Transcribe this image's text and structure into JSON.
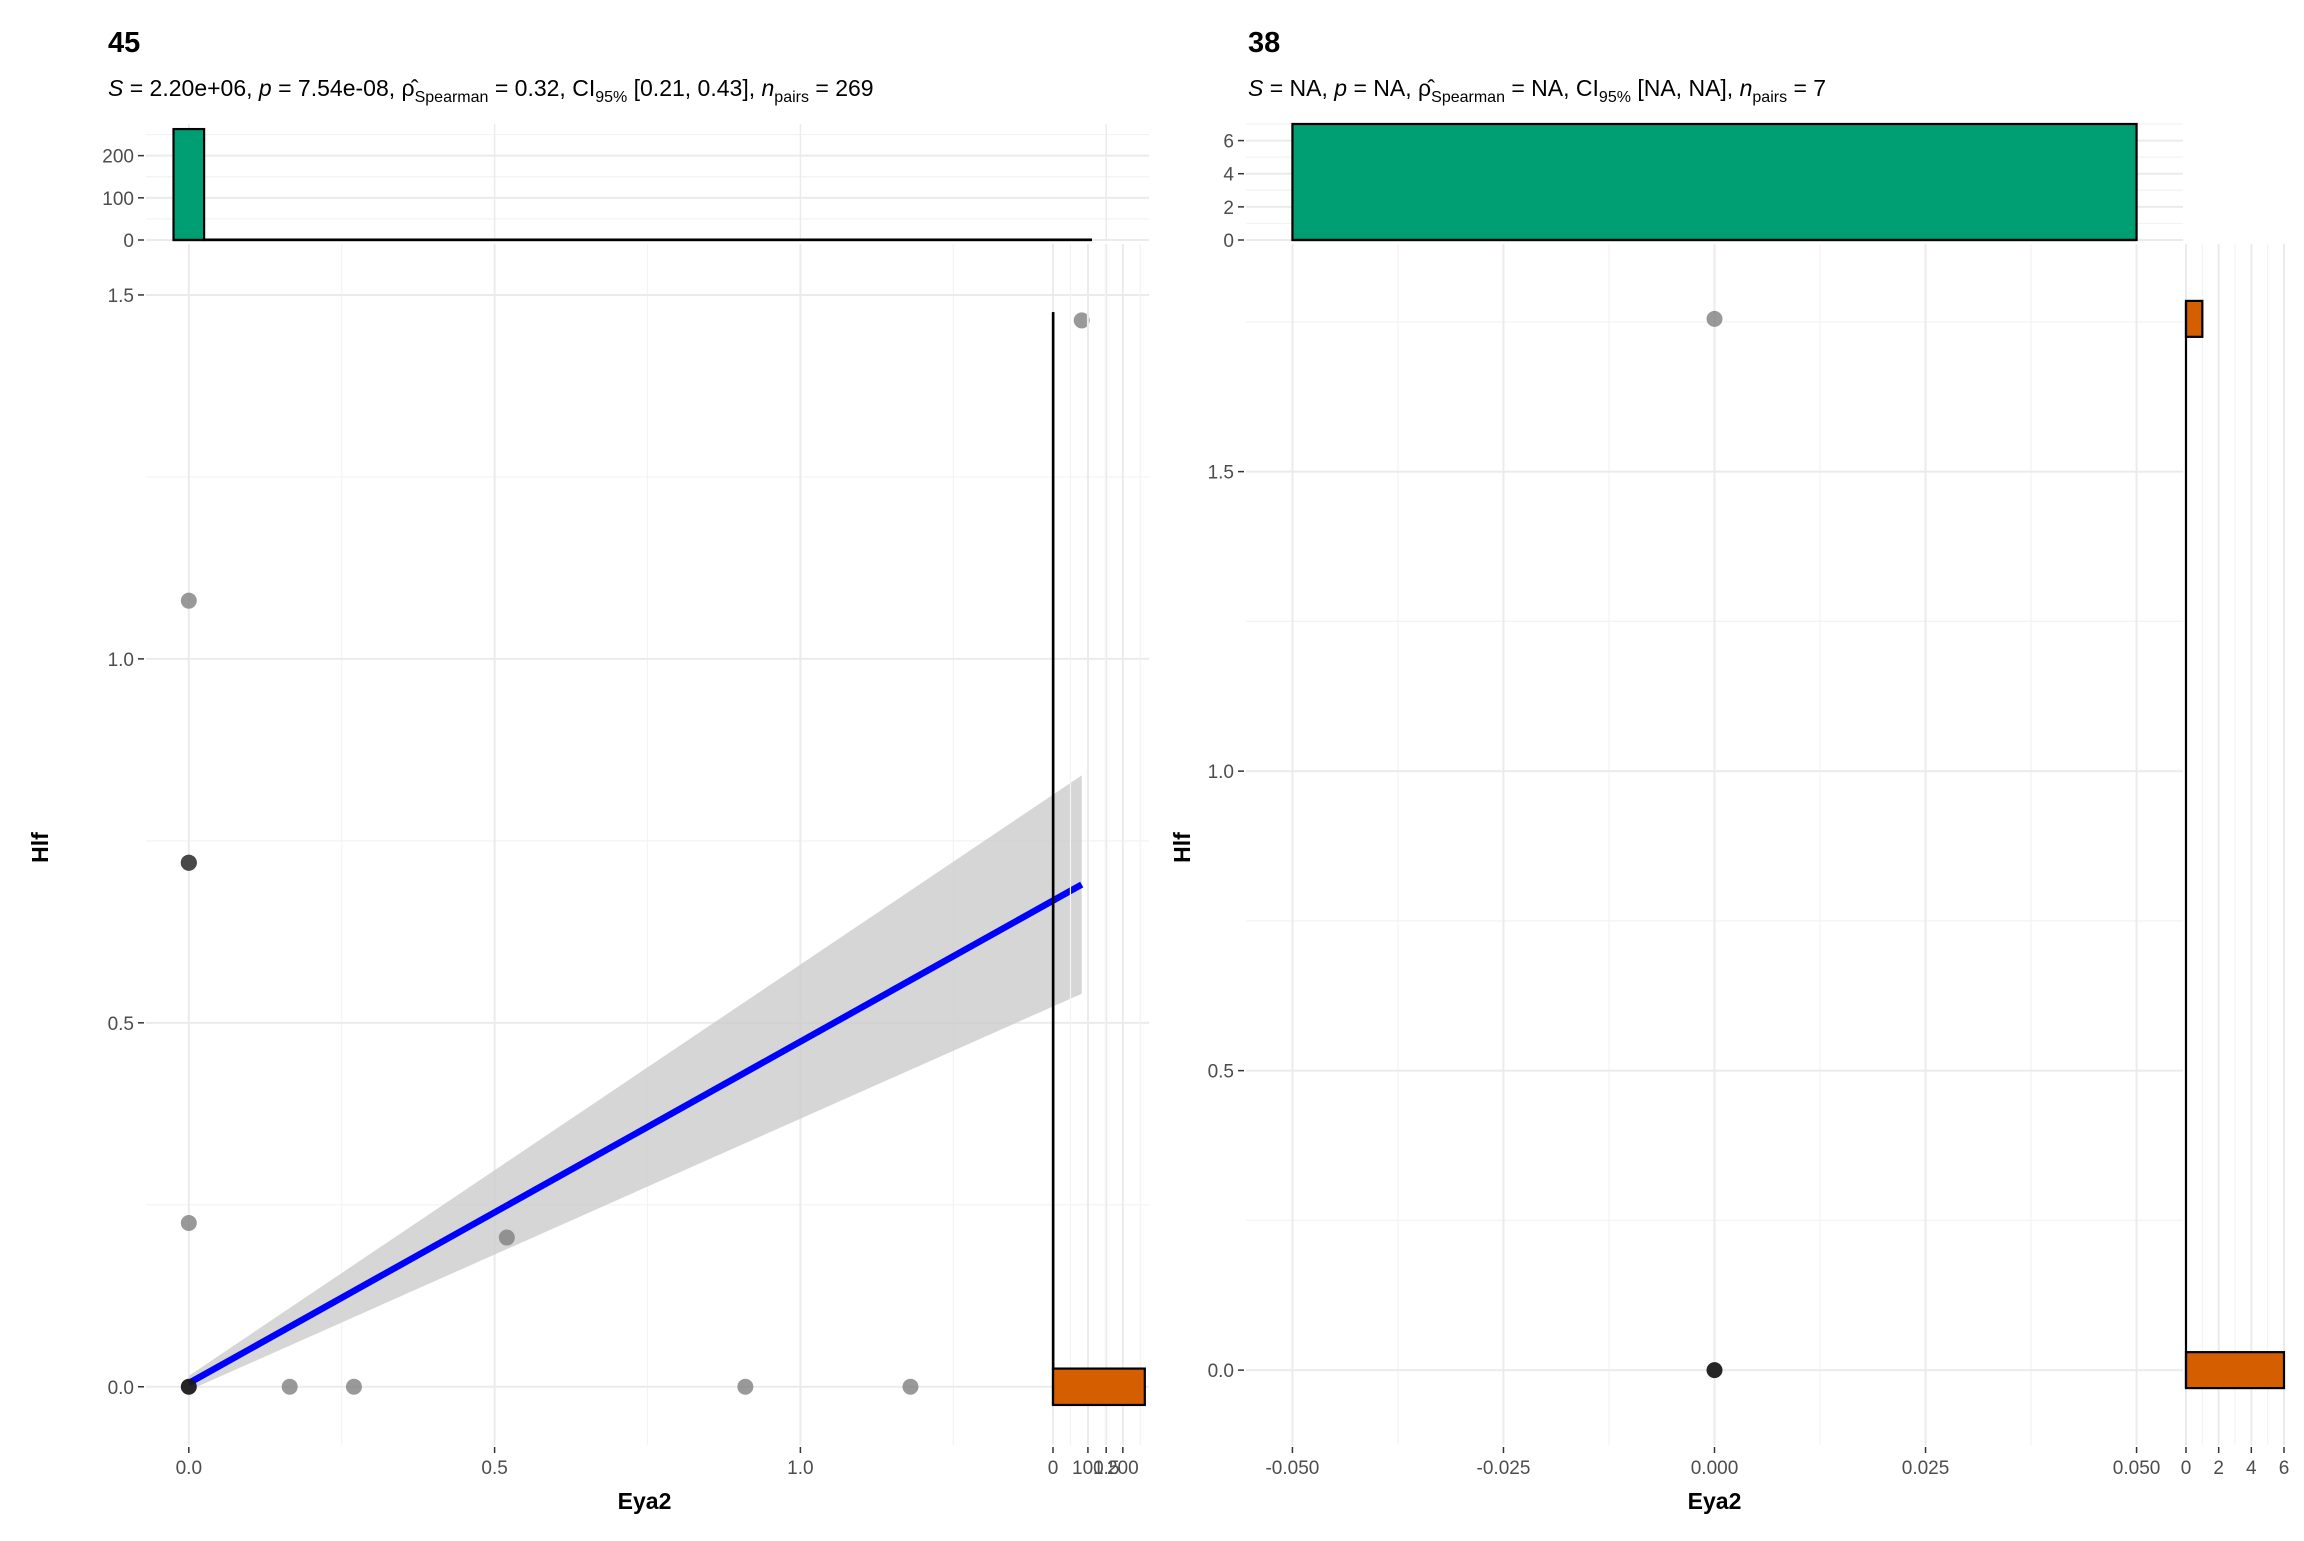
{
  "chart_data": [
    {
      "type": "scatter",
      "title": "45",
      "subtitle": {
        "s_label": "S",
        "s_value": "= 2.20e+06,",
        "p_label": "p",
        "p_value": "= 7.54e-08,",
        "rho_symbol": "ρ̂",
        "rho_sub": "Spearman",
        "rho_value": "= 0.32,",
        "ci_label": "CI",
        "ci_sub": "95%",
        "ci_value": "[0.21, 0.43],",
        "n_label": "n",
        "n_sub": "pairs",
        "n_value": "= 269"
      },
      "xlabel": "Eya2",
      "ylabel": "Hlf",
      "xlim": [
        -0.07,
        1.57
      ],
      "ylim": [
        -0.08,
        1.57
      ],
      "x_ticks": [
        0.0,
        0.5,
        1.0,
        1.5
      ],
      "x_tick_labels": [
        "0.0",
        "0.5",
        "1.0",
        "1.5"
      ],
      "y_ticks": [
        0.0,
        0.5,
        1.0,
        1.5
      ],
      "y_tick_labels": [
        "0.0",
        "0.5",
        "1.0",
        "1.5"
      ],
      "points": [
        {
          "x": 0.0,
          "y": 0.0,
          "dense": true
        },
        {
          "x": 0.0,
          "y": 0.225
        },
        {
          "x": 0.0,
          "y": 0.72,
          "dense": true
        },
        {
          "x": 0.0,
          "y": 1.08
        },
        {
          "x": 0.165,
          "y": 0.0
        },
        {
          "x": 0.27,
          "y": 0.0
        },
        {
          "x": 0.52,
          "y": 0.205
        },
        {
          "x": 0.91,
          "y": 0.0
        },
        {
          "x": 1.18,
          "y": 0.0
        },
        {
          "x": 1.46,
          "y": 1.465
        }
      ],
      "fit_line": {
        "x": [
          0.0,
          1.46
        ],
        "y": [
          0.005,
          0.69
        ],
        "color": "#0000ff"
      },
      "confidence_band": {
        "x": [
          0.0,
          1.46
        ],
        "lower": [
          -0.005,
          0.54
        ],
        "upper": [
          0.015,
          0.84
        ],
        "color": "#cccccc"
      },
      "top_histogram": {
        "color": "#009e73",
        "ylim": [
          0,
          275
        ],
        "y_ticks": [
          0,
          100,
          200
        ],
        "y_tick_labels": [
          "0",
          "100",
          "200"
        ],
        "bins": [
          {
            "x0": -0.025,
            "x1": 0.025,
            "count": 263
          },
          {
            "x0": 0.025,
            "x1": 1.475,
            "count": 1
          }
        ]
      },
      "right_histogram": {
        "color": "#d55e00",
        "xlim": [
          0,
          275
        ],
        "x_ticks": [
          0,
          100,
          200
        ],
        "x_tick_labels": [
          "0",
          "100",
          "200"
        ],
        "bins": [
          {
            "y0": -0.025,
            "y1": 0.025,
            "count": 263
          },
          {
            "y0": 0.025,
            "y1": 1.475,
            "count": 1
          }
        ]
      }
    },
    {
      "type": "scatter",
      "title": "38",
      "subtitle": {
        "s_label": "S",
        "s_value": "= NA,",
        "p_label": "p",
        "p_value": "= NA,",
        "rho_symbol": "ρ̂",
        "rho_sub": "Spearman",
        "rho_value": "= NA,",
        "ci_label": "CI",
        "ci_sub": "95%",
        "ci_value": "[NA, NA],",
        "n_label": "n",
        "n_sub": "pairs",
        "n_value": "= 7"
      },
      "xlabel": "Eya2",
      "ylabel": "Hlf",
      "xlim": [
        -0.0555,
        0.0555
      ],
      "ylim": [
        -0.125,
        1.88
      ],
      "x_ticks": [
        -0.05,
        -0.025,
        0.0,
        0.025,
        0.05
      ],
      "x_tick_labels": [
        "-0.050",
        "-0.025",
        "0.000",
        "0.025",
        "0.050"
      ],
      "y_ticks": [
        0.0,
        0.5,
        1.0,
        1.5
      ],
      "y_tick_labels": [
        "0.0",
        "0.5",
        "1.0",
        "1.5"
      ],
      "points": [
        {
          "x": 0.0,
          "y": 0.0,
          "dense": true
        },
        {
          "x": 0.0,
          "y": 1.755
        }
      ],
      "top_histogram": {
        "color": "#009e73",
        "ylim": [
          0,
          7
        ],
        "y_ticks": [
          0,
          2,
          4,
          6
        ],
        "y_tick_labels": [
          "0",
          "2",
          "4",
          "6"
        ],
        "bins": [
          {
            "x0": -0.05,
            "x1": 0.05,
            "count": 7
          }
        ]
      },
      "right_histogram": {
        "color": "#d55e00",
        "xlim": [
          0,
          6
        ],
        "x_ticks": [
          0,
          2,
          4,
          6
        ],
        "x_tick_labels": [
          "0",
          "2",
          "4",
          "6"
        ],
        "bins": [
          {
            "y0": -0.03,
            "y1": 0.03,
            "count": 6
          },
          {
            "y0": 1.725,
            "y1": 1.785,
            "count": 1
          }
        ]
      }
    }
  ]
}
